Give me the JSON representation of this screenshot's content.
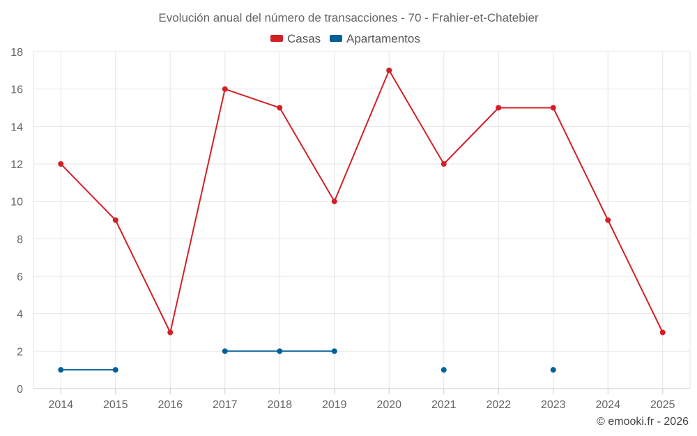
{
  "chart_data": {
    "type": "line",
    "title": "Evolución anual del número de transacciones - 70 - Frahier-et-Chatebier",
    "categories": [
      "2014",
      "2015",
      "2016",
      "2017",
      "2018",
      "2019",
      "2020",
      "2021",
      "2022",
      "2023",
      "2024",
      "2025"
    ],
    "series": [
      {
        "name": "Casas",
        "color": "#d32027",
        "values": [
          12,
          9,
          3,
          16,
          15,
          10,
          17,
          12,
          15,
          15,
          9,
          3
        ]
      },
      {
        "name": "Apartamentos",
        "color": "#006199",
        "values": [
          1,
          1,
          null,
          2,
          2,
          2,
          null,
          1,
          null,
          1,
          null,
          null
        ]
      }
    ],
    "ylim": [
      0,
      18
    ],
    "yticks": [
      0,
      2,
      4,
      6,
      8,
      10,
      12,
      14,
      16,
      18
    ],
    "grid": true,
    "legend_position": "top-center"
  },
  "credit": "© emooki.fr - 2026"
}
